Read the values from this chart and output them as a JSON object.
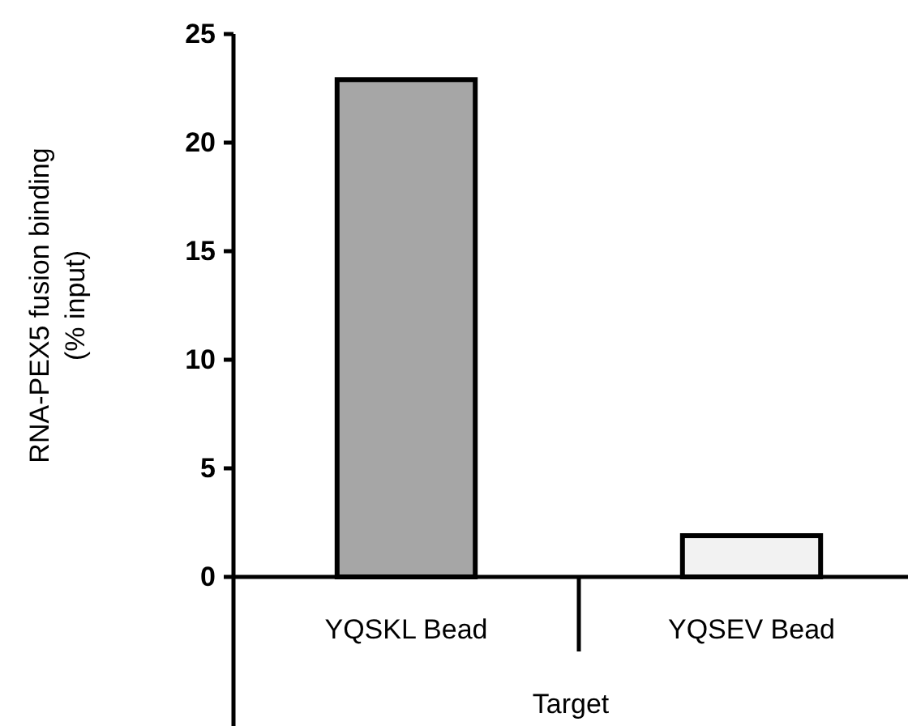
{
  "chart_data": {
    "type": "bar",
    "xlabel": "Target",
    "ylabel": "RNA-PEX5 fusion binding\n(% input)",
    "categories": [
      "YQSKL Bead",
      "YQSEV Bead"
    ],
    "values": [
      22.9,
      1.9
    ],
    "colors": [
      "#a6a6a6",
      "#f2f2f2"
    ],
    "ylim": [
      0,
      25
    ],
    "yticks": [
      0,
      5,
      10,
      15,
      20,
      25
    ],
    "grid": false
  }
}
